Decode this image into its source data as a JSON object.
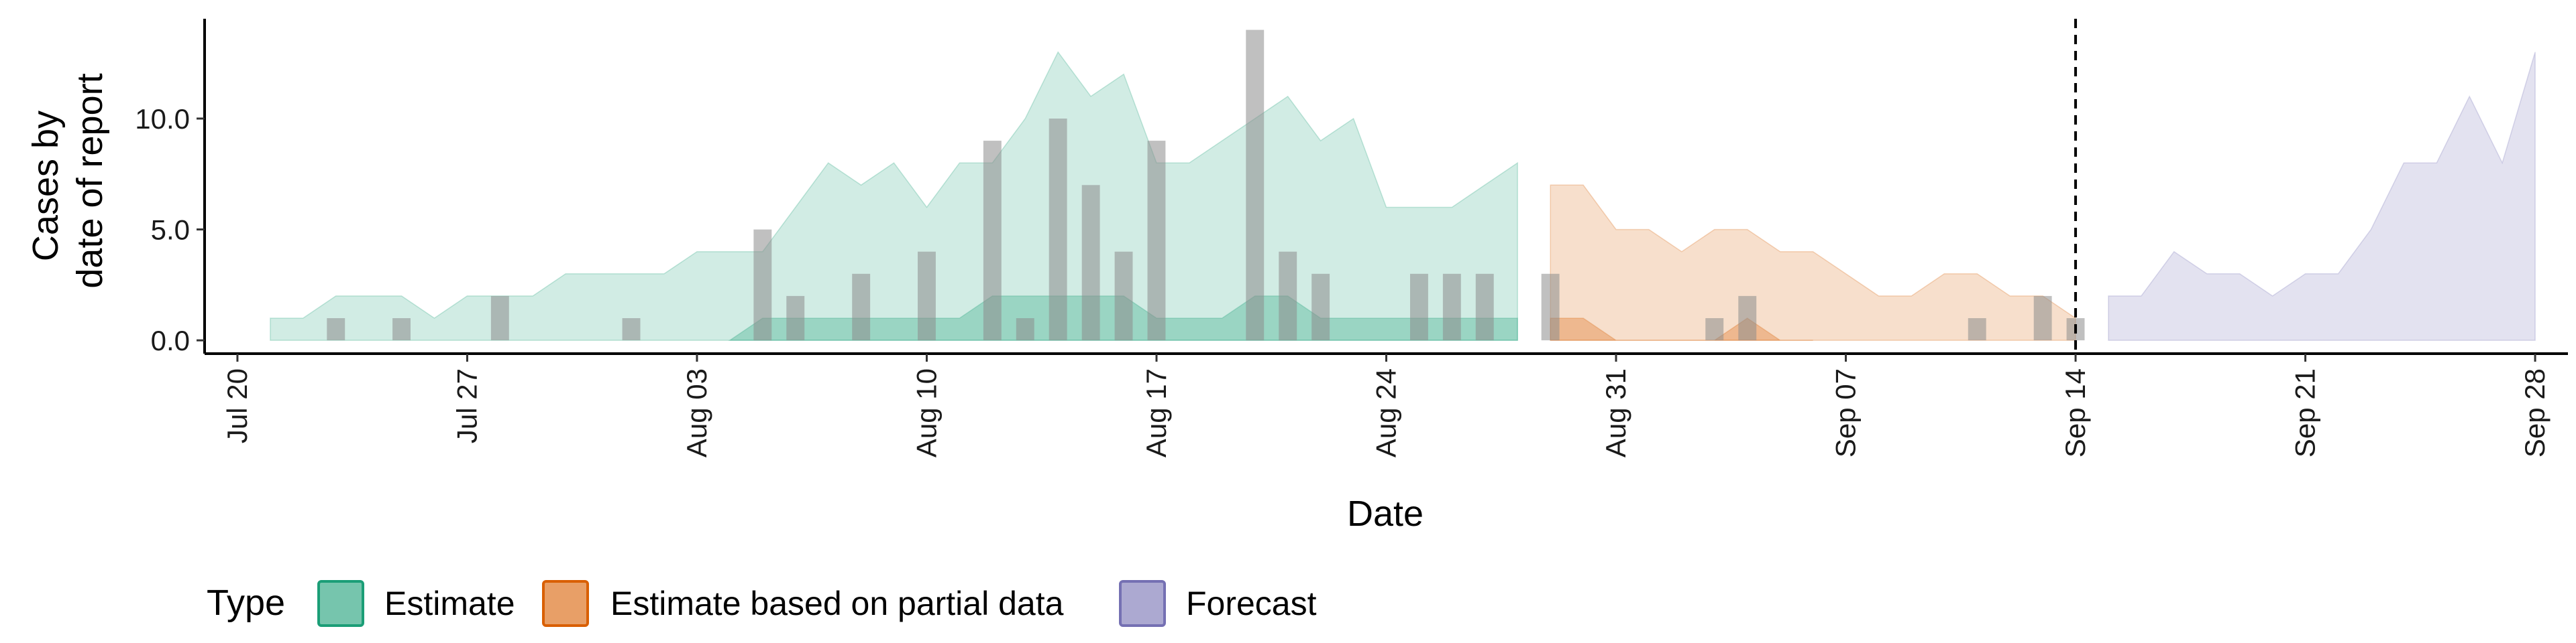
{
  "chart_data": {
    "type": "area",
    "xlabel": "Date",
    "ylabel_lines": [
      "Cases by",
      "date of report"
    ],
    "x_axis": {
      "unit": "date",
      "range": [
        "2020-07-19",
        "2020-09-29"
      ],
      "ticks": [
        {
          "date": "2020-07-20",
          "label": "Jul 20"
        },
        {
          "date": "2020-07-27",
          "label": "Jul 27"
        },
        {
          "date": "2020-08-03",
          "label": "Aug 03"
        },
        {
          "date": "2020-08-10",
          "label": "Aug 10"
        },
        {
          "date": "2020-08-17",
          "label": "Aug 17"
        },
        {
          "date": "2020-08-24",
          "label": "Aug 24"
        },
        {
          "date": "2020-08-31",
          "label": "Aug 31"
        },
        {
          "date": "2020-09-07",
          "label": "Sep 07"
        },
        {
          "date": "2020-09-14",
          "label": "Sep 14"
        },
        {
          "date": "2020-09-21",
          "label": "Sep 21"
        },
        {
          "date": "2020-09-28",
          "label": "Sep 28"
        }
      ]
    },
    "y_axis": {
      "range": [
        -0.6,
        14.5
      ],
      "ticks": [
        {
          "value": 0,
          "label": "0.0"
        },
        {
          "value": 5,
          "label": "5.0"
        },
        {
          "value": 10,
          "label": "10.0"
        }
      ]
    },
    "grid": false,
    "vline_date": "2020-09-14",
    "legend": {
      "title": "Type",
      "position": "bottom-left",
      "entries": [
        {
          "label": "Estimate",
          "color": "#1B9E77"
        },
        {
          "label": "Estimate based on partial data",
          "color": "#D95F02"
        },
        {
          "label": "Forecast",
          "color": "#7570B3"
        }
      ]
    },
    "bar_color": "#8c8c8c",
    "reported_cases": [
      {
        "date": "2020-07-23",
        "value": 1
      },
      {
        "date": "2020-07-25",
        "value": 1
      },
      {
        "date": "2020-07-28",
        "value": 2
      },
      {
        "date": "2020-08-01",
        "value": 1
      },
      {
        "date": "2020-08-05",
        "value": 5
      },
      {
        "date": "2020-08-06",
        "value": 2
      },
      {
        "date": "2020-08-08",
        "value": 3
      },
      {
        "date": "2020-08-10",
        "value": 4
      },
      {
        "date": "2020-08-12",
        "value": 9
      },
      {
        "date": "2020-08-13",
        "value": 1
      },
      {
        "date": "2020-08-14",
        "value": 10
      },
      {
        "date": "2020-08-15",
        "value": 7
      },
      {
        "date": "2020-08-16",
        "value": 4
      },
      {
        "date": "2020-08-17",
        "value": 9
      },
      {
        "date": "2020-08-20",
        "value": 14
      },
      {
        "date": "2020-08-21",
        "value": 4
      },
      {
        "date": "2020-08-22",
        "value": 3
      },
      {
        "date": "2020-08-25",
        "value": 3
      },
      {
        "date": "2020-08-26",
        "value": 3
      },
      {
        "date": "2020-08-27",
        "value": 3
      },
      {
        "date": "2020-08-29",
        "value": 3
      },
      {
        "date": "2020-09-03",
        "value": 1
      },
      {
        "date": "2020-09-04",
        "value": 2
      },
      {
        "date": "2020-09-11",
        "value": 1
      },
      {
        "date": "2020-09-13",
        "value": 2
      },
      {
        "date": "2020-09-14",
        "value": 1
      }
    ],
    "ribbons": [
      {
        "type": "Estimate",
        "color": "#1B9E77",
        "layers": [
          {
            "name": "outer",
            "opacity": 0.2,
            "points": [
              {
                "date": "2020-07-21",
                "lower": 0,
                "upper": 1
              },
              {
                "date": "2020-07-22",
                "lower": 0,
                "upper": 1
              },
              {
                "date": "2020-07-23",
                "lower": 0,
                "upper": 2
              },
              {
                "date": "2020-07-24",
                "lower": 0,
                "upper": 2
              },
              {
                "date": "2020-07-25",
                "lower": 0,
                "upper": 2
              },
              {
                "date": "2020-07-26",
                "lower": 0,
                "upper": 1
              },
              {
                "date": "2020-07-27",
                "lower": 0,
                "upper": 2
              },
              {
                "date": "2020-07-28",
                "lower": 0,
                "upper": 2
              },
              {
                "date": "2020-07-29",
                "lower": 0,
                "upper": 2
              },
              {
                "date": "2020-07-30",
                "lower": 0,
                "upper": 3
              },
              {
                "date": "2020-07-31",
                "lower": 0,
                "upper": 3
              },
              {
                "date": "2020-08-01",
                "lower": 0,
                "upper": 3
              },
              {
                "date": "2020-08-02",
                "lower": 0,
                "upper": 3
              },
              {
                "date": "2020-08-03",
                "lower": 0,
                "upper": 4
              },
              {
                "date": "2020-08-04",
                "lower": 0,
                "upper": 4
              },
              {
                "date": "2020-08-05",
                "lower": 0,
                "upper": 4
              },
              {
                "date": "2020-08-06",
                "lower": 0,
                "upper": 6
              },
              {
                "date": "2020-08-07",
                "lower": 0,
                "upper": 8
              },
              {
                "date": "2020-08-08",
                "lower": 0,
                "upper": 7
              },
              {
                "date": "2020-08-09",
                "lower": 0,
                "upper": 8
              },
              {
                "date": "2020-08-10",
                "lower": 0,
                "upper": 6
              },
              {
                "date": "2020-08-11",
                "lower": 0,
                "upper": 8
              },
              {
                "date": "2020-08-12",
                "lower": 0,
                "upper": 8
              },
              {
                "date": "2020-08-13",
                "lower": 0,
                "upper": 10
              },
              {
                "date": "2020-08-14",
                "lower": 0,
                "upper": 13
              },
              {
                "date": "2020-08-15",
                "lower": 0,
                "upper": 11
              },
              {
                "date": "2020-08-16",
                "lower": 0,
                "upper": 12
              },
              {
                "date": "2020-08-17",
                "lower": 0,
                "upper": 8
              },
              {
                "date": "2020-08-18",
                "lower": 0,
                "upper": 8
              },
              {
                "date": "2020-08-19",
                "lower": 0,
                "upper": 9
              },
              {
                "date": "2020-08-20",
                "lower": 0,
                "upper": 10
              },
              {
                "date": "2020-08-21",
                "lower": 0,
                "upper": 11
              },
              {
                "date": "2020-08-22",
                "lower": 0,
                "upper": 9
              },
              {
                "date": "2020-08-23",
                "lower": 0,
                "upper": 10
              },
              {
                "date": "2020-08-24",
                "lower": 0,
                "upper": 6
              },
              {
                "date": "2020-08-25",
                "lower": 0,
                "upper": 6
              },
              {
                "date": "2020-08-26",
                "lower": 0,
                "upper": 6
              },
              {
                "date": "2020-08-27",
                "lower": 0,
                "upper": 7
              },
              {
                "date": "2020-08-28",
                "lower": 0,
                "upper": 8
              }
            ]
          },
          {
            "name": "inner",
            "opacity": 0.3,
            "points": [
              {
                "date": "2020-08-04",
                "lower": 0,
                "upper": 0
              },
              {
                "date": "2020-08-05",
                "lower": 0,
                "upper": 1
              },
              {
                "date": "2020-08-06",
                "lower": 0,
                "upper": 1
              },
              {
                "date": "2020-08-07",
                "lower": 0,
                "upper": 1
              },
              {
                "date": "2020-08-08",
                "lower": 0,
                "upper": 1
              },
              {
                "date": "2020-08-09",
                "lower": 0,
                "upper": 1
              },
              {
                "date": "2020-08-10",
                "lower": 0,
                "upper": 1
              },
              {
                "date": "2020-08-11",
                "lower": 0,
                "upper": 1
              },
              {
                "date": "2020-08-12",
                "lower": 0,
                "upper": 2
              },
              {
                "date": "2020-08-13",
                "lower": 0,
                "upper": 2
              },
              {
                "date": "2020-08-14",
                "lower": 0,
                "upper": 2
              },
              {
                "date": "2020-08-15",
                "lower": 0,
                "upper": 2
              },
              {
                "date": "2020-08-16",
                "lower": 0,
                "upper": 2
              },
              {
                "date": "2020-08-17",
                "lower": 0,
                "upper": 1
              },
              {
                "date": "2020-08-18",
                "lower": 0,
                "upper": 1
              },
              {
                "date": "2020-08-19",
                "lower": 0,
                "upper": 1
              },
              {
                "date": "2020-08-20",
                "lower": 0,
                "upper": 2
              },
              {
                "date": "2020-08-21",
                "lower": 0,
                "upper": 2
              },
              {
                "date": "2020-08-22",
                "lower": 0,
                "upper": 1
              },
              {
                "date": "2020-08-23",
                "lower": 0,
                "upper": 1
              },
              {
                "date": "2020-08-24",
                "lower": 0,
                "upper": 1
              },
              {
                "date": "2020-08-25",
                "lower": 0,
                "upper": 1
              },
              {
                "date": "2020-08-26",
                "lower": 0,
                "upper": 1
              },
              {
                "date": "2020-08-27",
                "lower": 0,
                "upper": 1
              },
              {
                "date": "2020-08-28",
                "lower": 0,
                "upper": 1
              }
            ]
          }
        ]
      },
      {
        "type": "Estimate based on partial data",
        "color": "#D95F02",
        "layers": [
          {
            "name": "outer",
            "opacity": 0.2,
            "points": [
              {
                "date": "2020-08-29",
                "lower": 0,
                "upper": 7
              },
              {
                "date": "2020-08-30",
                "lower": 0,
                "upper": 7
              },
              {
                "date": "2020-08-31",
                "lower": 0,
                "upper": 5
              },
              {
                "date": "2020-09-01",
                "lower": 0,
                "upper": 5
              },
              {
                "date": "2020-09-02",
                "lower": 0,
                "upper": 4
              },
              {
                "date": "2020-09-03",
                "lower": 0,
                "upper": 5
              },
              {
                "date": "2020-09-04",
                "lower": 0,
                "upper": 5
              },
              {
                "date": "2020-09-05",
                "lower": 0,
                "upper": 4
              },
              {
                "date": "2020-09-06",
                "lower": 0,
                "upper": 4
              },
              {
                "date": "2020-09-07",
                "lower": 0,
                "upper": 3
              },
              {
                "date": "2020-09-08",
                "lower": 0,
                "upper": 2
              },
              {
                "date": "2020-09-09",
                "lower": 0,
                "upper": 2
              },
              {
                "date": "2020-09-10",
                "lower": 0,
                "upper": 3
              },
              {
                "date": "2020-09-11",
                "lower": 0,
                "upper": 3
              },
              {
                "date": "2020-09-12",
                "lower": 0,
                "upper": 2
              },
              {
                "date": "2020-09-13",
                "lower": 0,
                "upper": 2
              },
              {
                "date": "2020-09-14",
                "lower": 0,
                "upper": 1
              }
            ]
          },
          {
            "name": "inner",
            "opacity": 0.3,
            "points": [
              {
                "date": "2020-08-29",
                "lower": 0,
                "upper": 1
              },
              {
                "date": "2020-08-30",
                "lower": 0,
                "upper": 1
              },
              {
                "date": "2020-08-31",
                "lower": 0,
                "upper": 0
              },
              {
                "date": "2020-09-01",
                "lower": 0,
                "upper": 0
              },
              {
                "date": "2020-09-02",
                "lower": 0,
                "upper": 0
              },
              {
                "date": "2020-09-03",
                "lower": 0,
                "upper": 0
              },
              {
                "date": "2020-09-04",
                "lower": 0,
                "upper": 1
              },
              {
                "date": "2020-09-05",
                "lower": 0,
                "upper": 0
              },
              {
                "date": "2020-09-06",
                "lower": 0,
                "upper": 0
              }
            ]
          }
        ]
      },
      {
        "type": "Forecast",
        "color": "#7570B3",
        "layers": [
          {
            "name": "outer",
            "opacity": 0.2,
            "points": [
              {
                "date": "2020-09-15",
                "lower": 0,
                "upper": 2
              },
              {
                "date": "2020-09-16",
                "lower": 0,
                "upper": 2
              },
              {
                "date": "2020-09-17",
                "lower": 0,
                "upper": 4
              },
              {
                "date": "2020-09-18",
                "lower": 0,
                "upper": 3
              },
              {
                "date": "2020-09-19",
                "lower": 0,
                "upper": 3
              },
              {
                "date": "2020-09-20",
                "lower": 0,
                "upper": 2
              },
              {
                "date": "2020-09-21",
                "lower": 0,
                "upper": 3
              },
              {
                "date": "2020-09-22",
                "lower": 0,
                "upper": 3
              },
              {
                "date": "2020-09-23",
                "lower": 0,
                "upper": 5
              },
              {
                "date": "2020-09-24",
                "lower": 0,
                "upper": 8
              },
              {
                "date": "2020-09-25",
                "lower": 0,
                "upper": 8
              },
              {
                "date": "2020-09-26",
                "lower": 0,
                "upper": 11
              },
              {
                "date": "2020-09-27",
                "lower": 0,
                "upper": 8
              },
              {
                "date": "2020-09-28",
                "lower": 0,
                "upper": 13
              }
            ]
          }
        ]
      }
    ]
  }
}
